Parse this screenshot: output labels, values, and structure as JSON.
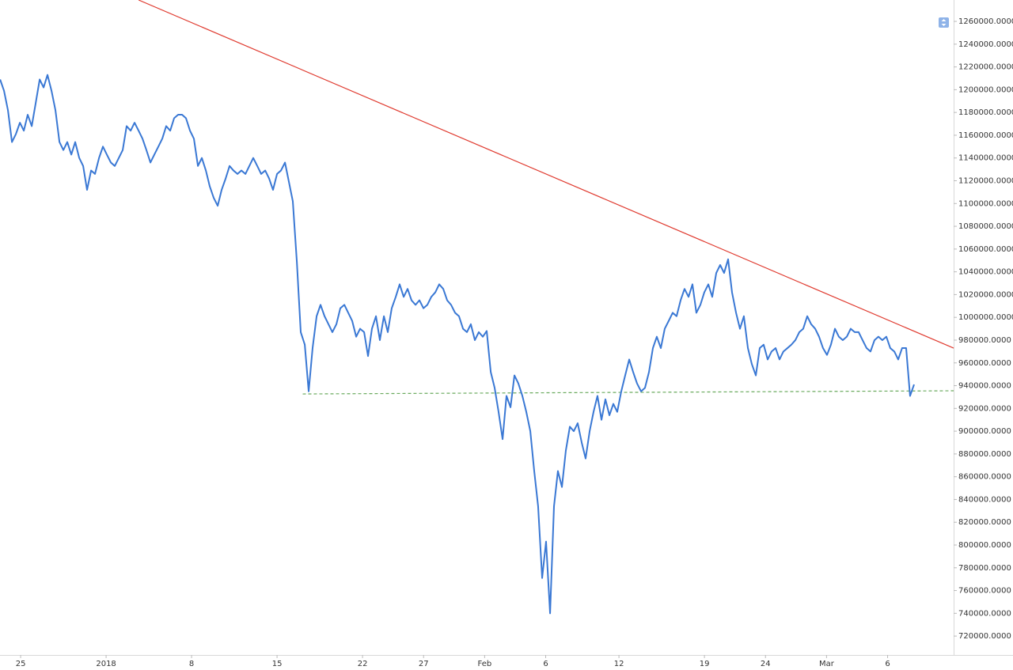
{
  "chart_data": {
    "type": "line",
    "color": "#3a78d4",
    "xlim": [
      -1.69,
      76.41
    ],
    "ylim": [
      703400,
      1278800
    ],
    "xticks": [
      {
        "value": 0,
        "label": "25"
      },
      {
        "value": 7,
        "label": "2018"
      },
      {
        "value": 14,
        "label": "8"
      },
      {
        "value": 21,
        "label": "15"
      },
      {
        "value": 28,
        "label": "22"
      },
      {
        "value": 33,
        "label": "27"
      },
      {
        "value": 38,
        "label": "Feb"
      },
      {
        "value": 43,
        "label": "6"
      },
      {
        "value": 49,
        "label": "12"
      },
      {
        "value": 56,
        "label": "19"
      },
      {
        "value": 61,
        "label": "24"
      },
      {
        "value": 66,
        "label": "Mar"
      },
      {
        "value": 71,
        "label": "6"
      }
    ],
    "yticks": [
      {
        "value": 720000,
        "label": "720000.0000"
      },
      {
        "value": 740000,
        "label": "740000.0000"
      },
      {
        "value": 760000,
        "label": "760000.0000"
      },
      {
        "value": 780000,
        "label": "780000.0000"
      },
      {
        "value": 800000,
        "label": "800000.0000"
      },
      {
        "value": 820000,
        "label": "820000.0000"
      },
      {
        "value": 840000,
        "label": "840000.0000"
      },
      {
        "value": 860000,
        "label": "860000.0000"
      },
      {
        "value": 880000,
        "label": "880000.0000"
      },
      {
        "value": 900000,
        "label": "900000.0000"
      },
      {
        "value": 920000,
        "label": "920000.0000"
      },
      {
        "value": 940000,
        "label": "940000.0000"
      },
      {
        "value": 960000,
        "label": "960000.0000"
      },
      {
        "value": 980000,
        "label": "980000.0000"
      },
      {
        "value": 1000000,
        "label": "1000000.0000"
      },
      {
        "value": 1020000,
        "label": "1020000.0000"
      },
      {
        "value": 1040000,
        "label": "1040000.0000"
      },
      {
        "value": 1060000,
        "label": "1060000.0000"
      },
      {
        "value": 1080000,
        "label": "1080000.0000"
      },
      {
        "value": 1100000,
        "label": "1100000.0000"
      },
      {
        "value": 1120000,
        "label": "1120000.0000"
      },
      {
        "value": 1140000,
        "label": "1140000.0000"
      },
      {
        "value": 1160000,
        "label": "1160000.0000"
      },
      {
        "value": 1180000,
        "label": "1180000.0000"
      },
      {
        "value": 1200000,
        "label": "1200000.0000"
      },
      {
        "value": 1220000,
        "label": "1220000.0000"
      },
      {
        "value": 1240000,
        "label": "1240000.0000"
      },
      {
        "value": 1260000,
        "label": "1260000.0000"
      }
    ],
    "x": [
      -1.68,
      -1.36,
      -1.04,
      -0.71,
      -0.39,
      -0.06,
      0.26,
      0.58,
      0.91,
      1.23,
      1.56,
      1.88,
      2.2,
      2.53,
      2.85,
      3.18,
      3.5,
      3.82,
      4.15,
      4.47,
      4.8,
      5.12,
      5.44,
      5.77,
      6.09,
      6.42,
      6.74,
      7.06,
      7.39,
      7.71,
      8.04,
      8.36,
      8.68,
      9.01,
      9.33,
      9.66,
      9.98,
      10.3,
      10.63,
      10.95,
      11.28,
      11.6,
      11.92,
      12.25,
      12.57,
      12.9,
      13.22,
      13.54,
      13.87,
      14.19,
      14.52,
      14.84,
      15.17,
      15.49,
      15.81,
      16.14,
      16.46,
      16.79,
      17.11,
      17.43,
      17.76,
      18.08,
      18.41,
      18.73,
      19.05,
      19.38,
      19.7,
      20.03,
      20.35,
      20.67,
      21.0,
      21.32,
      21.65,
      21.97,
      22.29,
      22.62,
      22.94,
      23.27,
      23.59,
      23.91,
      24.24,
      24.56,
      24.89,
      25.21,
      25.53,
      25.86,
      26.18,
      26.51,
      26.83,
      27.15,
      27.48,
      27.8,
      28.13,
      28.45,
      28.77,
      29.1,
      29.42,
      29.75,
      30.07,
      30.39,
      30.72,
      31.04,
      31.37,
      31.69,
      32.01,
      32.34,
      32.66,
      32.99,
      33.31,
      33.63,
      33.96,
      34.28,
      34.61,
      34.93,
      35.25,
      35.58,
      35.9,
      36.23,
      36.55,
      36.87,
      37.2,
      37.52,
      37.85,
      38.17,
      38.5,
      38.82,
      39.14,
      39.47,
      39.79,
      40.12,
      40.44,
      40.76,
      41.09,
      41.41,
      41.74,
      42.06,
      42.38,
      42.71,
      43.03,
      43.36,
      43.68,
      44.0,
      44.33,
      44.65,
      44.98,
      45.3,
      45.62,
      45.95,
      46.27,
      46.6,
      46.92,
      47.24,
      47.57,
      47.89,
      48.22,
      48.54,
      48.86,
      49.19,
      49.51,
      49.84,
      50.16,
      50.48,
      50.81,
      51.13,
      51.46,
      51.78,
      52.1,
      52.43,
      52.75,
      53.08,
      53.4,
      53.72,
      54.05,
      54.37,
      54.7,
      55.02,
      55.34,
      55.67,
      55.99,
      56.32,
      56.64,
      56.97,
      57.29,
      57.61,
      57.94,
      58.26,
      58.59,
      58.91,
      59.23,
      59.56,
      59.88,
      60.21,
      60.53,
      60.85,
      61.18,
      61.5,
      61.83,
      62.15,
      62.47,
      62.8,
      63.12,
      63.45,
      63.77,
      64.09,
      64.42,
      64.74,
      65.07,
      65.39,
      65.71,
      66.04,
      66.36,
      66.69,
      67.01,
      67.33,
      67.66,
      67.98,
      68.31,
      68.63,
      68.95,
      69.28,
      69.6,
      69.93,
      70.25,
      70.57,
      70.9,
      71.22,
      71.55,
      71.87,
      72.19,
      72.52,
      72.84,
      73.17
    ],
    "values": [
      1209000,
      1199000,
      1182000,
      1154000,
      1161000,
      1171000,
      1164000,
      1178000,
      1168000,
      1188000,
      1209000,
      1202000,
      1213000,
      1199000,
      1182000,
      1154000,
      1147000,
      1154000,
      1143000,
      1154000,
      1140000,
      1133000,
      1112000,
      1129000,
      1126000,
      1140000,
      1150000,
      1143000,
      1136000,
      1133000,
      1140000,
      1147000,
      1168000,
      1164000,
      1171000,
      1164000,
      1157000,
      1147000,
      1136000,
      1143000,
      1150000,
      1157000,
      1168000,
      1164000,
      1175000,
      1178000,
      1178000,
      1175000,
      1164000,
      1157000,
      1133000,
      1140000,
      1129000,
      1115000,
      1105000,
      1098000,
      1112000,
      1122000,
      1133000,
      1129000,
      1126000,
      1129000,
      1126000,
      1133000,
      1140000,
      1133000,
      1126000,
      1129000,
      1122000,
      1112000,
      1126000,
      1129000,
      1136000,
      1119000,
      1102000,
      1049000,
      987000,
      976000,
      935000,
      973000,
      1001000,
      1011000,
      1001000,
      994000,
      987000,
      994000,
      1008000,
      1011000,
      1004000,
      997000,
      983000,
      990000,
      987000,
      966000,
      990000,
      1001000,
      980000,
      1001000,
      987000,
      1008000,
      1018000,
      1029000,
      1018000,
      1025000,
      1015000,
      1011000,
      1015000,
      1008000,
      1011000,
      1018000,
      1022000,
      1029000,
      1025000,
      1015000,
      1011000,
      1004000,
      1001000,
      990000,
      987000,
      994000,
      980000,
      987000,
      983000,
      988000,
      952000,
      938000,
      917000,
      893000,
      931000,
      921000,
      949000,
      942000,
      931000,
      917000,
      900000,
      865000,
      834000,
      771000,
      803000,
      740000,
      834000,
      865000,
      851000,
      883000,
      904000,
      900000,
      907000,
      890000,
      876000,
      900000,
      917000,
      931000,
      910000,
      928000,
      914000,
      924000,
      917000,
      935000,
      949000,
      963000,
      952000,
      942000,
      935000,
      938000,
      952000,
      973000,
      983000,
      973000,
      990000,
      997000,
      1004000,
      1001000,
      1015000,
      1025000,
      1018000,
      1029000,
      1004000,
      1011000,
      1022000,
      1029000,
      1018000,
      1039000,
      1046000,
      1039000,
      1051000,
      1022000,
      1004000,
      990000,
      1001000,
      973000,
      959000,
      949000,
      973000,
      976000,
      963000,
      970000,
      973000,
      963000,
      970000,
      973000,
      976000,
      980000,
      987000,
      990000,
      1001000,
      994000,
      990000,
      983000,
      973000,
      967000,
      976000,
      990000,
      983000,
      980000,
      983000,
      990000,
      987000,
      987000,
      980000,
      973000,
      970000,
      980000,
      983000,
      980000,
      983000,
      973000,
      970000,
      963000,
      973000,
      973000,
      931000,
      941000
    ],
    "lines": [
      {
        "color": "#e03c31",
        "dashed": false,
        "x": [
          9.66,
          76.41
        ],
        "y": [
          1278800,
          973000
        ]
      },
      {
        "color": "#6aaa5e",
        "dashed": true,
        "x": [
          23.1,
          76.41
        ],
        "y": [
          932700,
          935500
        ]
      }
    ]
  }
}
